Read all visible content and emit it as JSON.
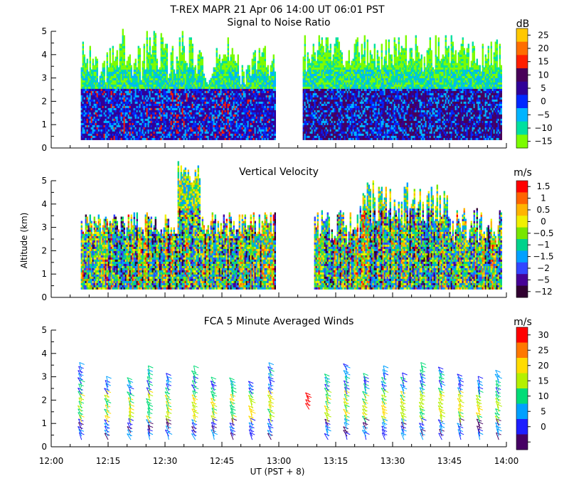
{
  "figure": {
    "main_title": "T-REX  MAPR 21 Apr 06  14:00 UT  06:01  PST",
    "ylabel": "Altitude (km)",
    "xlabel": "UT  (PST + 8)",
    "x_tick_labels": [
      "12:00",
      "12:15",
      "12:30",
      "12:45",
      "13:00",
      "13:15",
      "13:30",
      "13:45",
      "14:00"
    ],
    "y_tick_labels": [
      "0",
      "1",
      "2",
      "3",
      "4",
      "5"
    ]
  },
  "chart_data": [
    {
      "type": "heatmap",
      "title": "Signal to Noise Ratio",
      "units": "dB",
      "xlabel": "UT (PST + 8)",
      "ylabel": "Altitude (km)",
      "x_range_hours": [
        12.0,
        14.0
      ],
      "ylim": [
        0,
        5
      ],
      "data_gap_hours": [
        13.0,
        13.1
      ],
      "colorbar": {
        "labels": [
          "25",
          "20",
          "15",
          "10",
          "5",
          "0",
          "−5",
          "−10",
          "−15"
        ],
        "colors": [
          "#ffc800",
          "#ff6e00",
          "#ff1e00",
          "#480058",
          "#300098",
          "#0028ff",
          "#00b4ff",
          "#00e0a0",
          "#7cfc00"
        ]
      }
    },
    {
      "type": "heatmap",
      "title": "Vertical Velocity",
      "units": "m/s",
      "xlabel": "UT (PST + 8)",
      "ylabel": "Altitude (km)",
      "x_range_hours": [
        12.0,
        14.0
      ],
      "ylim": [
        0,
        5
      ],
      "data_gap_hours": [
        13.0,
        13.15
      ],
      "colorbar": {
        "labels": [
          "1.5",
          "1",
          "0.5",
          "0",
          "−0.5",
          "−1",
          "−1.5",
          "−2",
          "−5",
          "−12"
        ],
        "colors": [
          "#ff0000",
          "#ff6400",
          "#ffb400",
          "#f0f000",
          "#78e600",
          "#00d28c",
          "#00a0ff",
          "#3246ff",
          "#460096",
          "#300030"
        ]
      }
    },
    {
      "type": "scatter",
      "subtype": "wind-barbs",
      "title": "FCA 5 Minute Averaged Winds",
      "units": "m/s",
      "xlabel": "UT (PST + 8)",
      "ylabel": "Altitude (km)",
      "x_range_hours": [
        12.0,
        14.0
      ],
      "ylim": [
        0,
        5
      ],
      "profile_times": [
        "12:08",
        "12:15",
        "12:21",
        "12:26",
        "12:31",
        "12:38",
        "12:43",
        "12:48",
        "12:53",
        "12:58",
        "13:08",
        "13:13",
        "13:18",
        "13:23",
        "13:28",
        "13:33",
        "13:38",
        "13:43",
        "13:48",
        "13:53",
        "13:58"
      ],
      "altitude_range_km": [
        0.3,
        3.4
      ],
      "colorbar": {
        "labels": [
          "30",
          "25",
          "20",
          "15",
          "10",
          "5",
          "0"
        ],
        "colors": [
          "#ff0000",
          "#ff7800",
          "#ffdc00",
          "#b4f000",
          "#00dc78",
          "#00a0ff",
          "#1e1eff",
          "#460064"
        ]
      }
    }
  ]
}
